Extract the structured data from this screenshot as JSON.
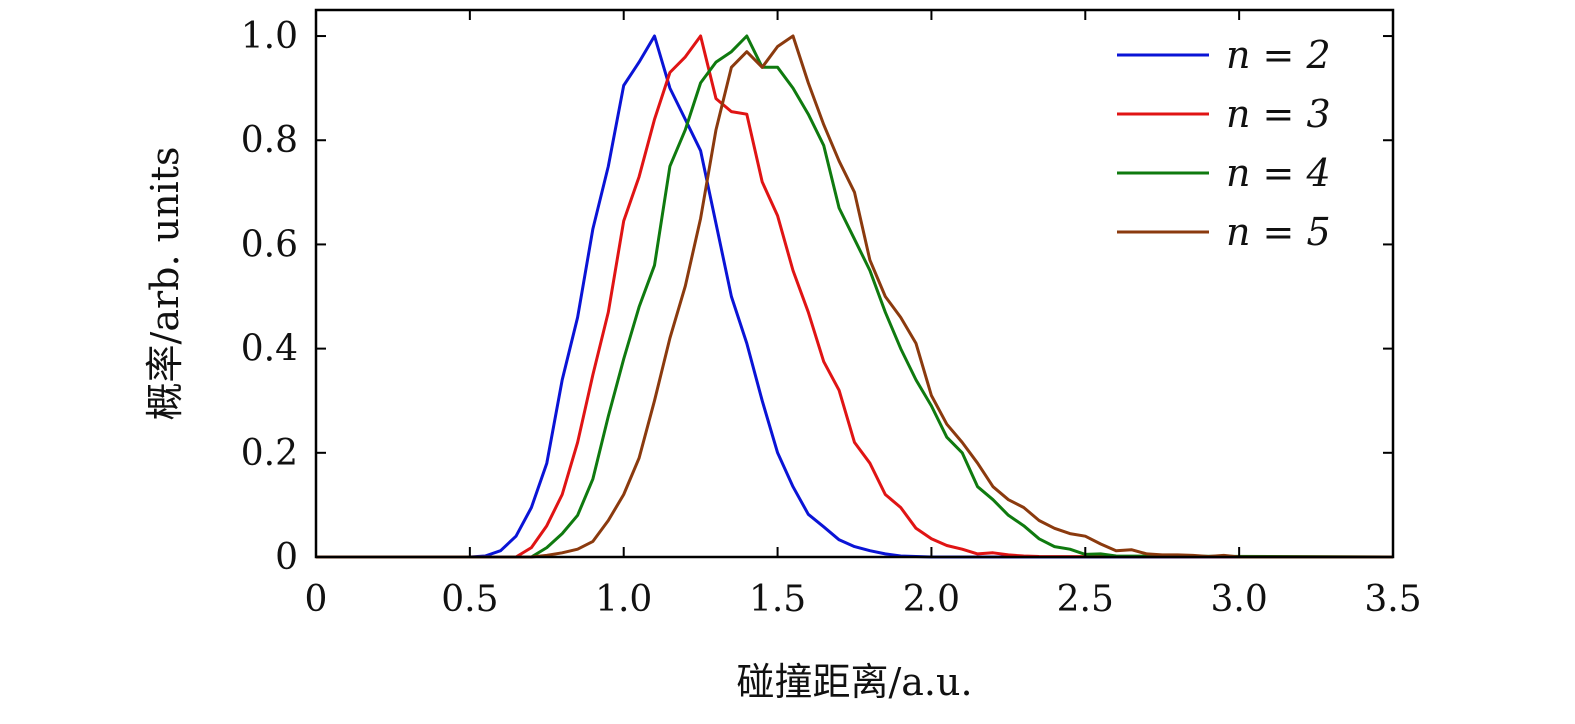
{
  "chart_data": {
    "type": "line",
    "title": "",
    "xlabel": "碰撞距离/a.u.",
    "ylabel": "概率/arb. units",
    "xlim": [
      0,
      3.5
    ],
    "ylim": [
      0,
      1.05
    ],
    "xticks": [
      0,
      0.5,
      1.0,
      1.5,
      2.0,
      2.5,
      3.0,
      3.5
    ],
    "xtick_labels": [
      "0",
      "0.5",
      "1.0",
      "1.5",
      "2.0",
      "2.5",
      "3.0",
      "3.5"
    ],
    "yticks": [
      0,
      0.2,
      0.4,
      0.6,
      0.8,
      1.0
    ],
    "ytick_labels": [
      "0",
      "0.2",
      "0.4",
      "0.6",
      "0.8",
      "1.0"
    ],
    "grid": false,
    "legend": "top-right",
    "series": [
      {
        "name": "n = 2",
        "color": "#0a14d6",
        "x": [
          0,
          0.5,
          0.55,
          0.6,
          0.65,
          0.7,
          0.75,
          0.8,
          0.85,
          0.9,
          0.95,
          1.0,
          1.05,
          1.1,
          1.15,
          1.2,
          1.25,
          1.3,
          1.35,
          1.4,
          1.45,
          1.5,
          1.55,
          1.6,
          1.65,
          1.7,
          1.75,
          1.8,
          1.85,
          1.9,
          1.95,
          2.0,
          3.5
        ],
        "y": [
          0,
          0,
          0.002,
          0.012,
          0.04,
          0.095,
          0.18,
          0.34,
          0.46,
          0.63,
          0.75,
          0.905,
          0.95,
          1.0,
          0.9,
          0.84,
          0.78,
          0.64,
          0.5,
          0.41,
          0.3,
          0.2,
          0.135,
          0.082,
          0.058,
          0.033,
          0.02,
          0.012,
          0.006,
          0.002,
          0.001,
          0,
          0
        ]
      },
      {
        "name": "n = 3",
        "color": "#e01414",
        "x": [
          0,
          0.65,
          0.7,
          0.75,
          0.8,
          0.85,
          0.9,
          0.95,
          1.0,
          1.05,
          1.1,
          1.15,
          1.2,
          1.25,
          1.3,
          1.35,
          1.4,
          1.45,
          1.5,
          1.55,
          1.6,
          1.65,
          1.7,
          1.75,
          1.8,
          1.85,
          1.9,
          1.95,
          2.0,
          2.05,
          2.1,
          2.15,
          2.2,
          2.25,
          2.3,
          2.35,
          3.5
        ],
        "y": [
          0,
          0,
          0.018,
          0.06,
          0.12,
          0.22,
          0.35,
          0.47,
          0.645,
          0.73,
          0.84,
          0.93,
          0.96,
          1.0,
          0.88,
          0.855,
          0.85,
          0.72,
          0.655,
          0.55,
          0.47,
          0.375,
          0.32,
          0.22,
          0.18,
          0.12,
          0.095,
          0.055,
          0.035,
          0.022,
          0.015,
          0.006,
          0.008,
          0.004,
          0.002,
          0.001,
          0
        ]
      },
      {
        "name": "n = 4",
        "color": "#0f7a0f",
        "x": [
          0,
          0.7,
          0.75,
          0.8,
          0.85,
          0.9,
          0.95,
          1.0,
          1.05,
          1.1,
          1.15,
          1.2,
          1.25,
          1.3,
          1.35,
          1.4,
          1.45,
          1.5,
          1.55,
          1.6,
          1.65,
          1.7,
          1.75,
          1.8,
          1.85,
          1.9,
          1.95,
          2.0,
          2.05,
          2.1,
          2.15,
          2.2,
          2.25,
          2.3,
          2.35,
          2.4,
          2.45,
          2.5,
          2.55,
          2.6,
          3.5
        ],
        "y": [
          0,
          0,
          0.018,
          0.045,
          0.08,
          0.15,
          0.27,
          0.38,
          0.48,
          0.56,
          0.75,
          0.82,
          0.91,
          0.95,
          0.97,
          1.0,
          0.94,
          0.94,
          0.9,
          0.85,
          0.79,
          0.67,
          0.61,
          0.55,
          0.47,
          0.4,
          0.34,
          0.29,
          0.23,
          0.2,
          0.135,
          0.11,
          0.08,
          0.06,
          0.035,
          0.02,
          0.015,
          0.005,
          0.006,
          0.002,
          0
        ]
      },
      {
        "name": "n = 5",
        "color": "#8b3a0e",
        "x": [
          0,
          0.7,
          0.75,
          0.8,
          0.85,
          0.9,
          0.95,
          1.0,
          1.05,
          1.1,
          1.15,
          1.2,
          1.25,
          1.3,
          1.35,
          1.4,
          1.45,
          1.5,
          1.55,
          1.6,
          1.65,
          1.7,
          1.75,
          1.8,
          1.85,
          1.9,
          1.95,
          2.0,
          2.05,
          2.1,
          2.15,
          2.2,
          2.25,
          2.3,
          2.35,
          2.4,
          2.45,
          2.5,
          2.55,
          2.6,
          2.65,
          2.7,
          2.75,
          2.8,
          2.85,
          2.9,
          2.95,
          3.0,
          3.5
        ],
        "y": [
          0,
          0,
          0.003,
          0.008,
          0.015,
          0.03,
          0.07,
          0.12,
          0.19,
          0.3,
          0.42,
          0.52,
          0.65,
          0.82,
          0.94,
          0.97,
          0.94,
          0.98,
          1.0,
          0.91,
          0.83,
          0.76,
          0.7,
          0.57,
          0.5,
          0.46,
          0.41,
          0.31,
          0.255,
          0.22,
          0.18,
          0.135,
          0.11,
          0.095,
          0.07,
          0.055,
          0.045,
          0.04,
          0.025,
          0.012,
          0.014,
          0.006,
          0.004,
          0.004,
          0.003,
          0.001,
          0.003,
          0,
          0
        ]
      }
    ]
  }
}
